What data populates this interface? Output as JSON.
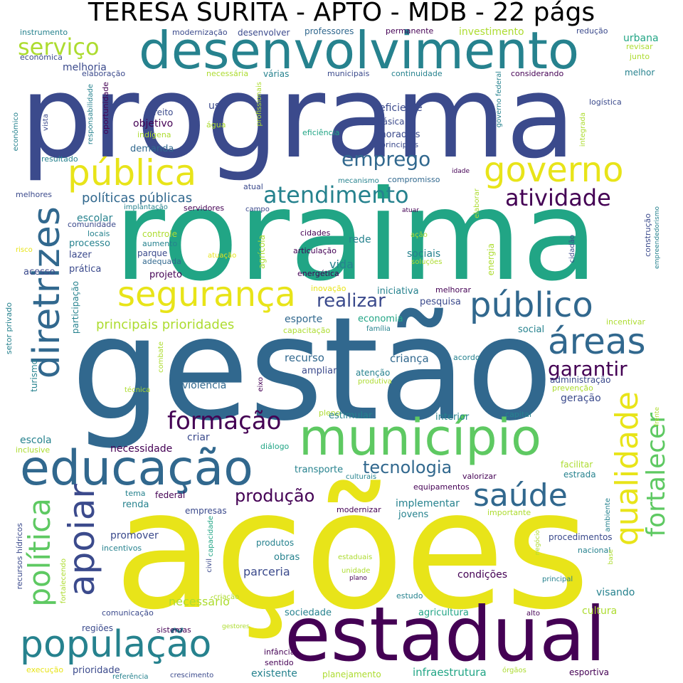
{
  "title": "TERESA SURITA - APTO - MDB - 22 págs",
  "palette": {
    "purple": "#440154",
    "indigo": "#3b4a8c",
    "blue": "#31688e",
    "teal": "#26828e",
    "green": "#21a585",
    "lightgreen": "#5ec962",
    "lime": "#addc30",
    "yellow": "#e8e419"
  },
  "words": [
    {
      "text": "ações",
      "color": "yellow"
    },
    {
      "text": "gestão",
      "color": "blue"
    },
    {
      "text": "roraima",
      "color": "green"
    },
    {
      "text": "programa",
      "color": "indigo"
    },
    {
      "text": "estadual",
      "color": "purple"
    },
    {
      "text": "desenvolvimento",
      "color": "teal"
    },
    {
      "text": "município",
      "color": "lightgreen"
    },
    {
      "text": "educação",
      "color": "blue"
    },
    {
      "text": "pública",
      "color": "yellow"
    },
    {
      "text": "governo",
      "color": "yellow"
    },
    {
      "text": "população",
      "color": "teal"
    },
    {
      "text": "diretrizes",
      "color": "blue"
    },
    {
      "text": "segurança",
      "color": "yellow"
    },
    {
      "text": "público",
      "color": "blue"
    },
    {
      "text": "áreas",
      "color": "blue"
    },
    {
      "text": "saúde",
      "color": "blue"
    },
    {
      "text": "apoiar",
      "color": "indigo"
    },
    {
      "text": "política",
      "color": "lightgreen"
    },
    {
      "text": "qualidade",
      "color": "yellow"
    },
    {
      "text": "fortalecer",
      "color": "lightgreen"
    },
    {
      "text": "formação",
      "color": "purple"
    },
    {
      "text": "atendimento",
      "color": "teal"
    },
    {
      "text": "atividade",
      "color": "purple"
    },
    {
      "text": "emprego",
      "color": "blue"
    },
    {
      "text": "serviço",
      "color": "lime"
    },
    {
      "text": "garantir",
      "color": "purple"
    },
    {
      "text": "realizar",
      "color": "indigo"
    },
    {
      "text": "tecnologia",
      "color": "blue"
    },
    {
      "text": "produção",
      "color": "purple"
    },
    {
      "text": "políticas públicas",
      "color": "blue"
    },
    {
      "text": "principais prioridades",
      "color": "lime"
    },
    {
      "text": "melhoria",
      "color": "indigo"
    },
    {
      "text": "instrumento",
      "color": "teal"
    },
    {
      "text": "econômica",
      "color": "indigo"
    },
    {
      "text": "elaboração",
      "color": "indigo"
    },
    {
      "text": "modernização",
      "color": "indigo"
    },
    {
      "text": "desenvolver",
      "color": "indigo"
    },
    {
      "text": "professores",
      "color": "blue"
    },
    {
      "text": "permanente",
      "color": "purple"
    },
    {
      "text": "investimento",
      "color": "lime"
    },
    {
      "text": "redução",
      "color": "indigo"
    },
    {
      "text": "urbana",
      "color": "green"
    },
    {
      "text": "revisar",
      "color": "lime"
    },
    {
      "text": "junto",
      "color": "lime"
    },
    {
      "text": "melhor",
      "color": "teal"
    },
    {
      "text": "necessária",
      "color": "lime"
    },
    {
      "text": "várias",
      "color": "teal"
    },
    {
      "text": "municipais",
      "color": "indigo"
    },
    {
      "text": "continuidade",
      "color": "teal"
    },
    {
      "text": "considerando",
      "color": "purple"
    },
    {
      "text": "logística",
      "color": "indigo"
    },
    {
      "text": "eficiente",
      "color": "indigo"
    },
    {
      "text": "básica",
      "color": "indigo"
    },
    {
      "text": "moradias",
      "color": "indigo"
    },
    {
      "text": "principais",
      "color": "indigo"
    },
    {
      "text": "eficiência",
      "color": "green"
    },
    {
      "text": "direito",
      "color": "indigo"
    },
    {
      "text": "uso",
      "color": "indigo"
    },
    {
      "text": "objetivo",
      "color": "purple"
    },
    {
      "text": "indígena",
      "color": "lime"
    },
    {
      "text": "água",
      "color": "lime"
    },
    {
      "text": "demanda",
      "color": "blue"
    },
    {
      "text": "compromisso",
      "color": "blue"
    },
    {
      "text": "mecanismo",
      "color": "teal"
    },
    {
      "text": "idade",
      "color": "purple"
    },
    {
      "text": "atual",
      "color": "indigo"
    },
    {
      "text": "campo",
      "color": "indigo"
    },
    {
      "text": "atuar",
      "color": "purple"
    },
    {
      "text": "melhores",
      "color": "indigo"
    },
    {
      "text": "resultado",
      "color": "teal"
    },
    {
      "text": "escolar",
      "color": "teal"
    },
    {
      "text": "implantação",
      "color": "teal"
    },
    {
      "text": "servidores",
      "color": "purple"
    },
    {
      "text": "comunidade",
      "color": "indigo"
    },
    {
      "text": "locais",
      "color": "teal"
    },
    {
      "text": "controle",
      "color": "lime"
    },
    {
      "text": "aumento",
      "color": "teal"
    },
    {
      "text": "parque",
      "color": "indigo"
    },
    {
      "text": "adequada",
      "color": "blue"
    },
    {
      "text": "processo",
      "color": "teal"
    },
    {
      "text": "lazer",
      "color": "indigo"
    },
    {
      "text": "prática",
      "color": "indigo"
    },
    {
      "text": "projeto",
      "color": "purple"
    },
    {
      "text": "acesso",
      "color": "indigo"
    },
    {
      "text": "risco",
      "color": "yellow"
    },
    {
      "text": "cidades",
      "color": "purple"
    },
    {
      "text": "ação",
      "color": "lime"
    },
    {
      "text": "rede",
      "color": "teal"
    },
    {
      "text": "articulação",
      "color": "purple"
    },
    {
      "text": "sociais",
      "color": "teal"
    },
    {
      "text": "soluções",
      "color": "lime"
    },
    {
      "text": "vida",
      "color": "teal"
    },
    {
      "text": "energética",
      "color": "purple"
    },
    {
      "text": "atuação",
      "color": "yellow"
    },
    {
      "text": "inovação",
      "color": "yellow"
    },
    {
      "text": "iniciativa",
      "color": "teal"
    },
    {
      "text": "melhorar",
      "color": "purple"
    },
    {
      "text": "pesquisa",
      "color": "indigo"
    },
    {
      "text": "esporte",
      "color": "blue"
    },
    {
      "text": "economia",
      "color": "green"
    },
    {
      "text": "família",
      "color": "teal"
    },
    {
      "text": "capacitação",
      "color": "lime"
    },
    {
      "text": "recurso",
      "color": "blue"
    },
    {
      "text": "ampliar",
      "color": "indigo"
    },
    {
      "text": "criança",
      "color": "blue"
    },
    {
      "text": "atenção",
      "color": "teal"
    },
    {
      "text": "produtiva",
      "color": "lime"
    },
    {
      "text": "acordo",
      "color": "teal"
    },
    {
      "text": "social",
      "color": "teal"
    },
    {
      "text": "incentivar",
      "color": "lime"
    },
    {
      "text": "administração",
      "color": "indigo"
    },
    {
      "text": "prevenção",
      "color": "lime"
    },
    {
      "text": "geração",
      "color": "indigo"
    },
    {
      "text": "violência",
      "color": "blue"
    },
    {
      "text": "técnica",
      "color": "lime"
    },
    {
      "text": "eixo",
      "color": "purple"
    },
    {
      "text": "pleno",
      "color": "lime"
    },
    {
      "text": "estimular",
      "color": "teal"
    },
    {
      "text": "interior",
      "color": "teal"
    },
    {
      "text": "capital",
      "color": "teal"
    },
    {
      "text": "frente",
      "color": "lime"
    },
    {
      "text": "criar",
      "color": "indigo"
    },
    {
      "text": "escola",
      "color": "teal"
    },
    {
      "text": "inclusive",
      "color": "lime"
    },
    {
      "text": "necessidade",
      "color": "purple"
    },
    {
      "text": "diálogo",
      "color": "green"
    },
    {
      "text": "transporte",
      "color": "teal"
    },
    {
      "text": "culturais",
      "color": "teal"
    },
    {
      "text": "valorizar",
      "color": "purple"
    },
    {
      "text": "facilitar",
      "color": "lime"
    },
    {
      "text": "estrada",
      "color": "teal"
    },
    {
      "text": "equipamentos",
      "color": "purple"
    },
    {
      "text": "tema",
      "color": "teal"
    },
    {
      "text": "federal",
      "color": "purple"
    },
    {
      "text": "renda",
      "color": "teal"
    },
    {
      "text": "implementar",
      "color": "teal"
    },
    {
      "text": "empresas",
      "color": "indigo"
    },
    {
      "text": "modernizar",
      "color": "purple"
    },
    {
      "text": "jovens",
      "color": "teal"
    },
    {
      "text": "importante",
      "color": "lime"
    },
    {
      "text": "ambiente",
      "color": "teal"
    },
    {
      "text": "promover",
      "color": "indigo"
    },
    {
      "text": "incentivos",
      "color": "teal"
    },
    {
      "text": "produtos",
      "color": "teal"
    },
    {
      "text": "obras",
      "color": "teal"
    },
    {
      "text": "procedimentos",
      "color": "indigo"
    },
    {
      "text": "nacional",
      "color": "teal"
    },
    {
      "text": "parceria",
      "color": "indigo"
    },
    {
      "text": "estaduais",
      "color": "lime"
    },
    {
      "text": "unidade",
      "color": "lime"
    },
    {
      "text": "plano",
      "color": "purple"
    },
    {
      "text": "condições",
      "color": "purple"
    },
    {
      "text": "principal",
      "color": "teal"
    },
    {
      "text": "visando",
      "color": "teal"
    },
    {
      "text": "estudo",
      "color": "teal"
    },
    {
      "text": "criação",
      "color": "lime"
    },
    {
      "text": "necessário",
      "color": "lime"
    },
    {
      "text": "comunicação",
      "color": "indigo"
    },
    {
      "text": "sociedade",
      "color": "teal"
    },
    {
      "text": "agricultura",
      "color": "green"
    },
    {
      "text": "alto",
      "color": "purple"
    },
    {
      "text": "cultura",
      "color": "lime"
    },
    {
      "text": "regiões",
      "color": "indigo"
    },
    {
      "text": "sistemas",
      "color": "purple"
    },
    {
      "text": "gestores",
      "color": "lime"
    },
    {
      "text": "infância",
      "color": "purple"
    },
    {
      "text": "sentido",
      "color": "purple"
    },
    {
      "text": "execução",
      "color": "yellow"
    },
    {
      "text": "prioridade",
      "color": "indigo"
    },
    {
      "text": "referência",
      "color": "teal"
    },
    {
      "text": "crescimento",
      "color": "indigo"
    },
    {
      "text": "existente",
      "color": "teal"
    },
    {
      "text": "planejamento",
      "color": "lime"
    },
    {
      "text": "infraestrutura",
      "color": "green"
    },
    {
      "text": "órgãos",
      "color": "lime"
    },
    {
      "text": "esportiva",
      "color": "purple"
    },
    {
      "text": "econômico",
      "color": "teal"
    },
    {
      "text": "vista",
      "color": "indigo"
    },
    {
      "text": "responsabilidade",
      "color": "teal"
    },
    {
      "text": "oportunidade",
      "color": "purple"
    },
    {
      "text": "profissionais",
      "color": "lime"
    },
    {
      "text": "governo federal",
      "color": "teal"
    },
    {
      "text": "integrada",
      "color": "lime"
    },
    {
      "text": "elaborar",
      "color": "lime"
    },
    {
      "text": "energia",
      "color": "lime"
    },
    {
      "text": "agrícola",
      "color": "lime"
    },
    {
      "text": "construção",
      "color": "indigo"
    },
    {
      "text": "empreendedorismo",
      "color": "teal"
    },
    {
      "text": "cidadão",
      "color": "indigo"
    },
    {
      "text": "participação",
      "color": "teal"
    },
    {
      "text": "setor privado",
      "color": "teal"
    },
    {
      "text": "turismo",
      "color": "teal"
    },
    {
      "text": "combate",
      "color": "lime"
    },
    {
      "text": "recursos hídricos",
      "color": "indigo"
    },
    {
      "text": "fortalecendo",
      "color": "lime"
    },
    {
      "text": "capacidade",
      "color": "green"
    },
    {
      "text": "civil",
      "color": "indigo"
    },
    {
      "text": "negócio",
      "color": "lime"
    },
    {
      "text": "base",
      "color": "lime"
    }
  ]
}
